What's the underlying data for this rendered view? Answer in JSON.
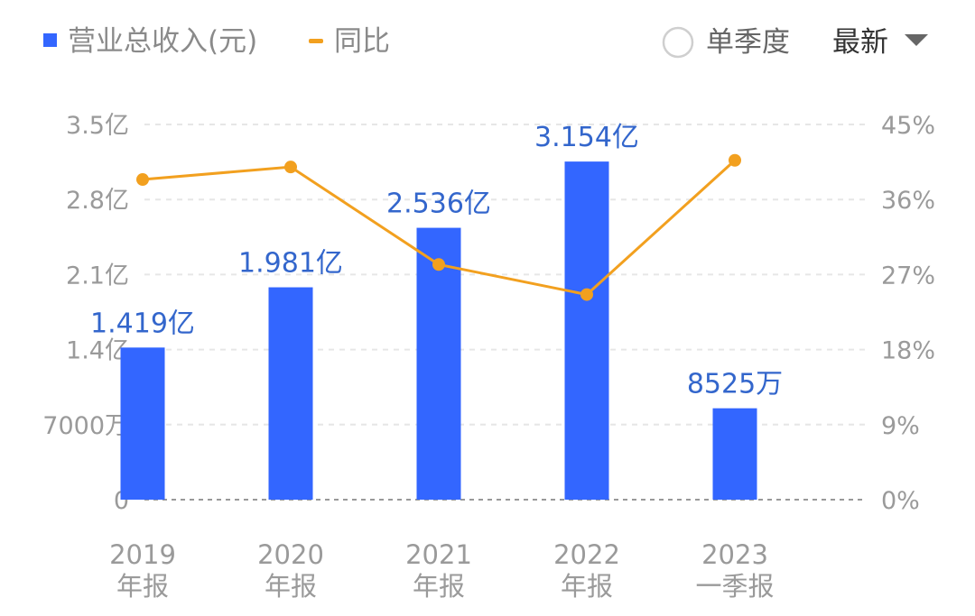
{
  "legend": {
    "revenue_label": "营业总收入(元)",
    "yoy_label": "同比"
  },
  "controls": {
    "single_quarter_label": "单季度",
    "single_quarter_checked": false,
    "period_selected": "最新"
  },
  "colors": {
    "bar": "#3366ff",
    "line": "#f2a01f",
    "data_label": "#3366cc",
    "grid": "#e6e6e6",
    "axis": "#999999"
  },
  "chart_data": {
    "type": "bar",
    "categories": [
      [
        "2019",
        "年报"
      ],
      [
        "2020",
        "年报"
      ],
      [
        "2021",
        "年报"
      ],
      [
        "2022",
        "年报"
      ],
      [
        "2023",
        "一季报"
      ]
    ],
    "series": [
      {
        "name": "营业总收入(元)",
        "type": "bar",
        "axis": "left",
        "values": [
          141900000,
          198100000,
          253600000,
          315400000,
          85250000
        ],
        "data_labels": [
          "1.419亿",
          "1.981亿",
          "2.536亿",
          "3.154亿",
          "8525万"
        ]
      },
      {
        "name": "同比",
        "type": "line",
        "axis": "right",
        "values": [
          38.4,
          39.9,
          28.2,
          24.6,
          40.7
        ]
      }
    ],
    "y_left": {
      "ticks": [
        0,
        70000000,
        140000000,
        210000000,
        280000000,
        350000000
      ],
      "tick_labels": [
        "0",
        "7000万",
        "1.4亿",
        "2.1亿",
        "2.8亿",
        "3.5亿"
      ],
      "range": [
        0,
        350000000
      ]
    },
    "y_right": {
      "ticks": [
        0,
        9,
        18,
        27,
        36,
        45
      ],
      "tick_labels": [
        "0%",
        "9%",
        "18%",
        "27%",
        "36%",
        "45%"
      ],
      "range": [
        0,
        45
      ]
    },
    "grid": true
  }
}
